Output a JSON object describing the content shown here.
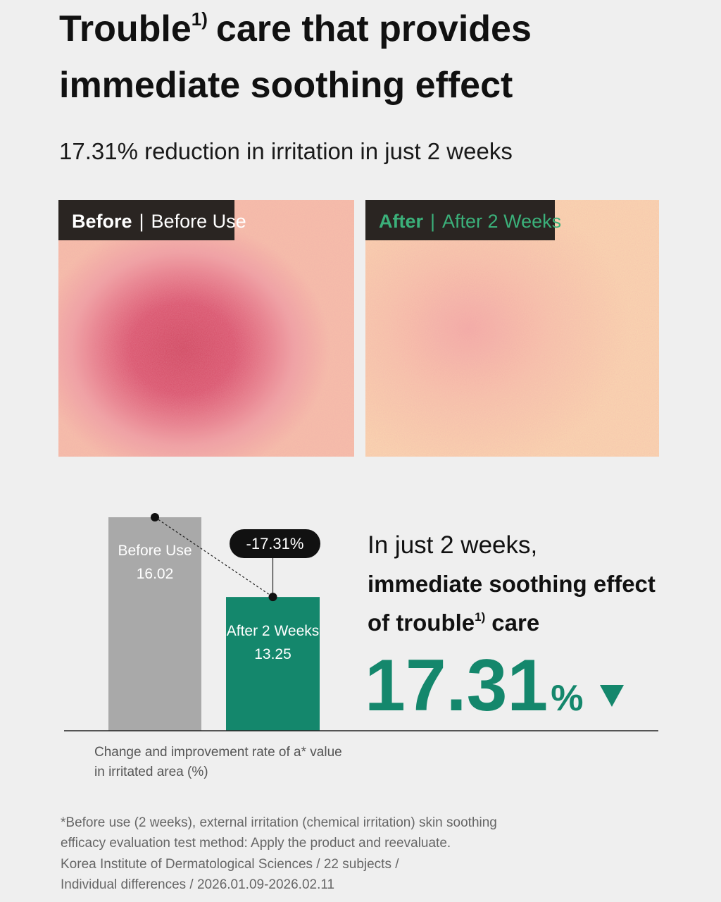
{
  "header": {
    "title": {
      "pre": "Trouble",
      "sup": "1)",
      "post": "care that provides",
      "line2": "immediate soothing effect"
    },
    "subtitle": "17.31% reduction in irritation in just 2 weeks"
  },
  "photos": [
    {
      "tag": "Before",
      "label": "Before Use"
    },
    {
      "tag": "After",
      "label": "After 2 Weeks"
    }
  ],
  "chart_data": {
    "type": "bar",
    "categories": [
      "Before Use",
      "After 2 Weeks"
    ],
    "values": [
      16.02,
      13.25
    ],
    "colors": [
      "#a9a9a9",
      "#14876c"
    ],
    "ylim": [
      8.6,
      17
    ],
    "annotation": "-17.31%",
    "x_label": [
      "Change and improvement rate of a* value",
      "in irritated area (%)"
    ]
  },
  "summary": {
    "line1": "In just 2 weeks,",
    "line2": "immediate soothing effect",
    "line3_pre": "of trouble",
    "line3_sup": "1)",
    "line3_post": "care",
    "figure": "17.31",
    "unit": "%"
  },
  "footnotes": [
    "*Before use (2 weeks), external irritation (chemical irritation) skin soothing",
    "efficacy evaluation test method: Apply the product and reevaluate.",
    "Korea Institute of Dermatological Sciences / 22 subjects /",
    "Individual differences / 2026.01.09-2026.02.11"
  ]
}
